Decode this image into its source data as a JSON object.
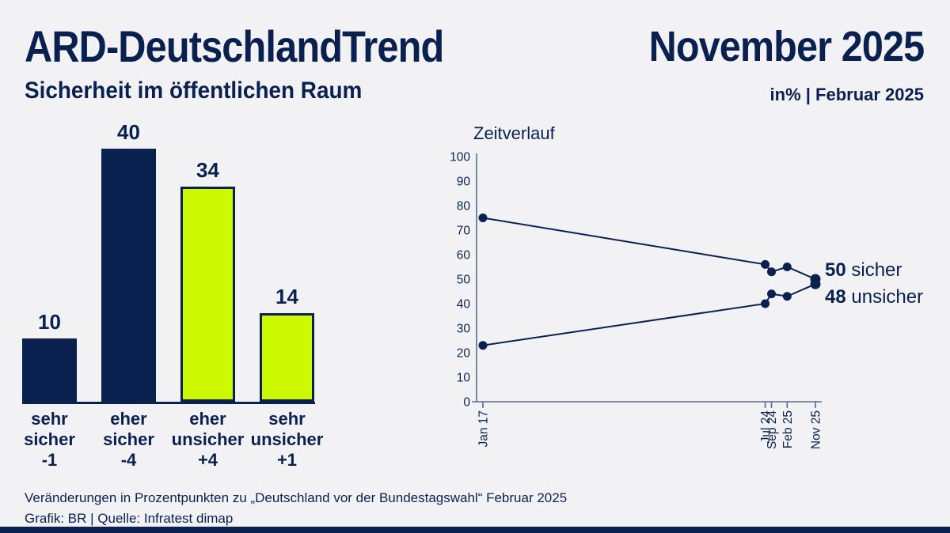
{
  "page": {
    "background": "#f2f2f4",
    "accent_navy": "#0a2150",
    "accent_green": "#ccf902",
    "axis_color": "#5b6b85"
  },
  "header": {
    "title": "ARD-DeutschlandTrend",
    "edition": "November 2025",
    "subtitle": "Sicherheit im öffentlichen Raum",
    "unit_note": "in% | Februar 2025"
  },
  "chart_data": [
    {
      "type": "bar",
      "title": "Sicherheit im öffentlichen Raum",
      "categories": [
        "sehr sicher",
        "eher sicher",
        "eher unsicher",
        "sehr unsicher"
      ],
      "values": [
        10,
        40,
        34,
        14
      ],
      "changes": [
        "-1",
        "-4",
        "+4",
        "+1"
      ],
      "colors": [
        "#0a2150",
        "#0a2150",
        "#ccf902",
        "#ccf902"
      ],
      "ylim": [
        0,
        40
      ],
      "grid": false
    },
    {
      "type": "line",
      "title": "Zeitverlauf",
      "x_labels": [
        "Jan 17",
        "Jul 24",
        "Sep 24",
        "Feb 25",
        "Nov 25"
      ],
      "x_months": [
        0,
        90,
        92,
        97,
        106
      ],
      "series": [
        {
          "name": "sicher",
          "values": [
            75,
            56,
            53,
            55,
            50
          ]
        },
        {
          "name": "unsicher",
          "values": [
            23,
            40,
            44,
            43,
            48
          ]
        }
      ],
      "ylim": [
        0,
        100
      ],
      "y_ticks": [
        0,
        10,
        20,
        30,
        40,
        50,
        60,
        70,
        80,
        90,
        100
      ],
      "grid": false,
      "legend_position": "end-of-line"
    }
  ],
  "footer": {
    "note": "Veränderungen in Prozentpunkten zu „Deutschland vor der Bundestagswahl“ Februar 2025",
    "credit": "Grafik: BR | Quelle: Infratest dimap"
  }
}
